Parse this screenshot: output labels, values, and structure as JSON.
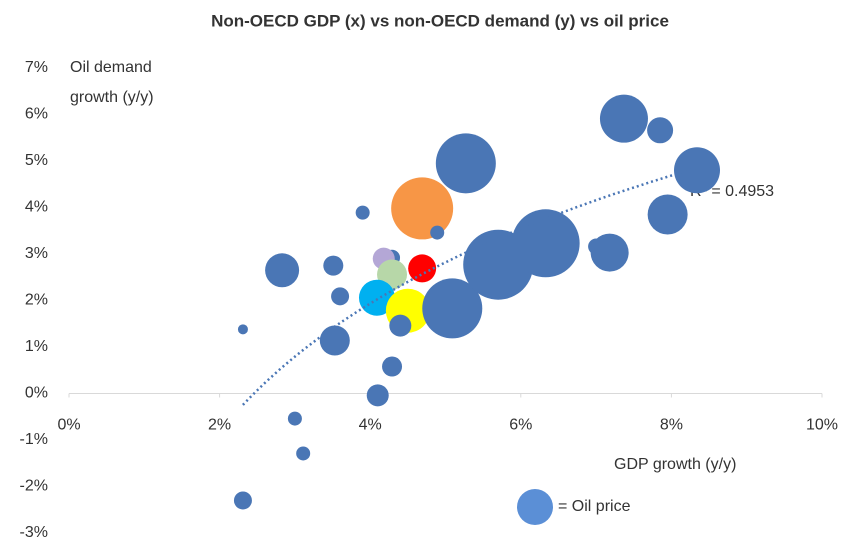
{
  "chart_data": {
    "type": "bubble",
    "title": "Non-OECD GDP (x) vs non-OECD demand (y) vs oil price",
    "x_label": "GDP growth (y/y)",
    "y_label": [
      "Oil demand",
      "growth (y/y)"
    ],
    "legend_label": "= Oil price",
    "legend_color": "#5b8fd6",
    "trendline": {
      "type": "log",
      "label": "R² = 0.4953",
      "color": "#4a76b5"
    },
    "xlim": [
      0,
      10
    ],
    "xticks": [
      {
        "value": 0,
        "label": "0%"
      },
      {
        "value": 2,
        "label": "2%"
      },
      {
        "value": 4,
        "label": "4%"
      },
      {
        "value": 6,
        "label": "6%"
      },
      {
        "value": 8,
        "label": "8%"
      },
      {
        "value": 10,
        "label": "10%"
      }
    ],
    "ylim": [
      -3,
      7
    ],
    "yticks": [
      {
        "value": -3,
        "label": "-3%"
      },
      {
        "value": -2,
        "label": "-2%"
      },
      {
        "value": -1,
        "label": "-1%"
      },
      {
        "value": 0,
        "label": "0%"
      },
      {
        "value": 1,
        "label": "1%"
      },
      {
        "value": 2,
        "label": "2%"
      },
      {
        "value": 3,
        "label": "3%"
      },
      {
        "value": 4,
        "label": "4%"
      },
      {
        "value": 5,
        "label": "5%"
      },
      {
        "value": 6,
        "label": "6%"
      },
      {
        "value": 7,
        "label": "7%"
      }
    ],
    "grid": false,
    "series": [
      {
        "x": [
          2.31,
          2.83,
          3.51,
          3.6,
          3.53,
          3.9,
          4.29,
          4.18,
          4.29,
          4.69,
          4.69,
          4.89,
          4.09,
          4.5,
          4.4,
          4.29,
          4.1,
          5.09,
          5.27,
          5.7,
          6.33,
          7.0,
          7.18,
          7.37,
          7.85,
          7.95,
          8.34,
          3.0,
          3.11,
          2.31
        ],
        "values": [
          1.38,
          2.65,
          2.75,
          2.09,
          1.14,
          3.89,
          2.92,
          2.9,
          2.56,
          2.69,
          3.98,
          3.46,
          2.06,
          1.78,
          1.46,
          0.58,
          -0.04,
          1.83,
          4.95,
          2.77,
          3.23,
          3.16,
          3.03,
          5.91,
          5.66,
          3.85,
          4.8,
          -0.54,
          -1.29,
          -2.3
        ],
        "sizes": [
          5,
          17,
          10,
          9,
          15,
          7,
          8,
          11,
          15,
          14,
          31,
          7,
          18,
          22,
          11,
          10,
          11,
          30,
          30,
          35,
          34,
          8,
          19,
          24,
          13,
          20,
          23,
          7,
          7,
          9
        ],
        "colors": [
          "#4a76b5",
          "#4a76b5",
          "#4a76b5",
          "#4a76b5",
          "#4a76b5",
          "#4a76b5",
          "#4a76b5",
          "#b4a7d6",
          "#b7d7a8",
          "#ff0000",
          "#f79646",
          "#4a76b5",
          "#00b0f0",
          "#ffff00",
          "#4a76b5",
          "#4a76b5",
          "#4a76b5",
          "#4a76b5",
          "#4a76b5",
          "#4a76b5",
          "#4a76b5",
          "#4a76b5",
          "#4a76b5",
          "#4a76b5",
          "#4a76b5",
          "#4a76b5",
          "#4a76b5",
          "#4a76b5",
          "#4a76b5",
          "#4a76b5"
        ]
      }
    ]
  }
}
